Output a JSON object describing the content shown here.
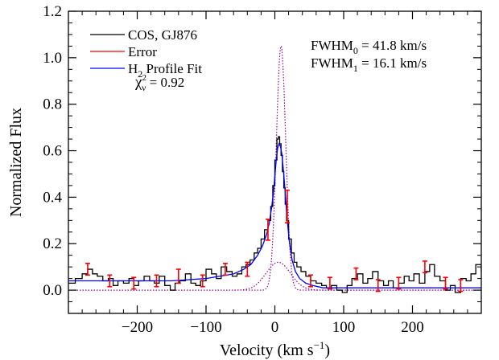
{
  "chart_data": {
    "type": "line",
    "title": "",
    "xlabel": "Velocity (km s",
    "xlabel_sup": "−1",
    "xlabel_close": ")",
    "ylabel": "Normalized Flux",
    "xlim": [
      -300,
      300
    ],
    "ylim": [
      -0.1,
      1.2
    ],
    "xticks": [
      -200,
      -100,
      0,
      100,
      200
    ],
    "xtick_labels": [
      "−200",
      "−100",
      "0",
      "100",
      "200"
    ],
    "yticks": [
      0.0,
      0.2,
      0.4,
      0.6,
      0.8,
      1.0,
      1.2
    ],
    "ytick_labels": [
      "0.0",
      "0.2",
      "0.4",
      "0.6",
      "0.8",
      "1.0",
      "1.2"
    ],
    "grid": false,
    "legend_position": "top-left",
    "colors": {
      "data": "#000000",
      "error": "#ff0000",
      "fit": "#0000ff",
      "components": "#990099"
    },
    "legend": [
      {
        "main": "COS, GJ876",
        "color": "#000000"
      },
      {
        "main": "Error",
        "color": "#ff0000"
      },
      {
        "main": "H",
        "sub": "2",
        "rest": " Profile Fit",
        "color": "#0000ff"
      }
    ],
    "chi2": {
      "symbol": "χ",
      "sup": "2",
      "sub": "ν",
      "rest": " = 0.92",
      "color": "#0000ff"
    },
    "fwhm_annotations": [
      {
        "main": "FWHM",
        "sub": "0",
        "rest": " = 41.8 km/s",
        "color": "#990099"
      },
      {
        "main": "FWHM",
        "sub": "1",
        "rest": " = 16.1 km/s",
        "color": "#990099"
      }
    ],
    "series": [
      {
        "name": "COS, GJ876",
        "style": "step",
        "color": "#000000",
        "x": [
          -300,
          -290,
          -280,
          -272,
          -265,
          -258,
          -250,
          -242,
          -235,
          -228,
          -220,
          -212,
          -205,
          -198,
          -190,
          -182,
          -175,
          -168,
          -160,
          -152,
          -145,
          -138,
          -130,
          -122,
          -115,
          -108,
          -100,
          -92,
          -85,
          -78,
          -70,
          -62,
          -55,
          -48,
          -42,
          -36,
          -30,
          -25,
          -20,
          -15,
          -10,
          -6,
          -3,
          0,
          3,
          5,
          7,
          9,
          11,
          13,
          15,
          17,
          20,
          24,
          28,
          32,
          38,
          45,
          52,
          60,
          68,
          75,
          82,
          90,
          98,
          105,
          112,
          120,
          128,
          135,
          142,
          150,
          158,
          165,
          172,
          180,
          188,
          195,
          202,
          210,
          218,
          225,
          232,
          240,
          248,
          255,
          262,
          270,
          278,
          285,
          292,
          300
        ],
        "y": [
          0.03,
          0.05,
          0.07,
          0.09,
          0.07,
          0.06,
          0.04,
          0.05,
          0.02,
          0.04,
          0.03,
          0.05,
          0.02,
          0.04,
          0.06,
          0.04,
          0.03,
          0.06,
          0.02,
          0.0,
          0.03,
          0.04,
          0.07,
          0.03,
          0.02,
          0.04,
          0.09,
          0.07,
          0.05,
          0.1,
          0.08,
          0.06,
          0.07,
          0.1,
          0.11,
          0.13,
          0.16,
          0.18,
          0.22,
          0.26,
          0.3,
          0.36,
          0.45,
          0.56,
          0.65,
          0.66,
          0.63,
          0.58,
          0.51,
          0.44,
          0.37,
          0.3,
          0.22,
          0.16,
          0.12,
          0.1,
          0.08,
          0.06,
          0.04,
          0.03,
          0.02,
          0.01,
          0.02,
          0.0,
          -0.01,
          0.02,
          0.05,
          0.07,
          0.03,
          0.05,
          0.08,
          0.04,
          0.02,
          0.04,
          0.01,
          0.03,
          0.06,
          0.04,
          0.07,
          0.03,
          0.08,
          0.11,
          0.06,
          0.04,
          0.0,
          0.02,
          -0.01,
          0.05,
          0.04,
          0.07,
          0.11,
          0.08
        ]
      },
      {
        "name": "H2 Profile Fit",
        "style": "line",
        "color": "#0000ff",
        "x": [
          -300,
          -250,
          -200,
          -150,
          -100,
          -80,
          -60,
          -45,
          -35,
          -25,
          -18,
          -12,
          -8,
          -5,
          -2,
          0,
          2,
          4,
          6,
          8,
          10,
          12,
          14,
          16,
          18,
          21,
          25,
          30,
          36,
          45,
          55,
          70,
          90,
          120,
          160,
          200,
          250,
          300
        ],
        "y": [
          0.04,
          0.04,
          0.04,
          0.04,
          0.05,
          0.06,
          0.07,
          0.09,
          0.11,
          0.15,
          0.19,
          0.24,
          0.29,
          0.35,
          0.42,
          0.49,
          0.56,
          0.61,
          0.63,
          0.62,
          0.59,
          0.53,
          0.46,
          0.38,
          0.3,
          0.21,
          0.13,
          0.08,
          0.05,
          0.03,
          0.02,
          0.01,
          0.01,
          0.01,
          0.01,
          0.01,
          0.01,
          0.01
        ]
      }
    ],
    "components": [
      {
        "name": "FWHM 41.8 km/s component",
        "center": 5,
        "fwhm": 41.8,
        "amp": 0.12,
        "baseline": 0.0
      },
      {
        "name": "FWHM 16.1 km/s component",
        "center": 9,
        "fwhm": 16.1,
        "amp": 1.05,
        "baseline": 0.0
      }
    ],
    "error_bars": {
      "color": "#ff0000",
      "x": [
        -272,
        -240,
        -205,
        -172,
        -140,
        -105,
        -72,
        -40,
        -10,
        18,
        52,
        80,
        118,
        150,
        180,
        218,
        248,
        270
      ],
      "y": [
        0.09,
        0.04,
        0.03,
        0.04,
        0.06,
        0.04,
        0.09,
        0.09,
        0.26,
        0.36,
        0.04,
        0.03,
        0.07,
        0.02,
        0.03,
        0.1,
        0.03,
        0.02
      ],
      "err": [
        0.025,
        0.025,
        0.025,
        0.025,
        0.03,
        0.025,
        0.025,
        0.03,
        0.045,
        0.07,
        0.025,
        0.025,
        0.025,
        0.025,
        0.025,
        0.025,
        0.025,
        0.025
      ]
    }
  }
}
